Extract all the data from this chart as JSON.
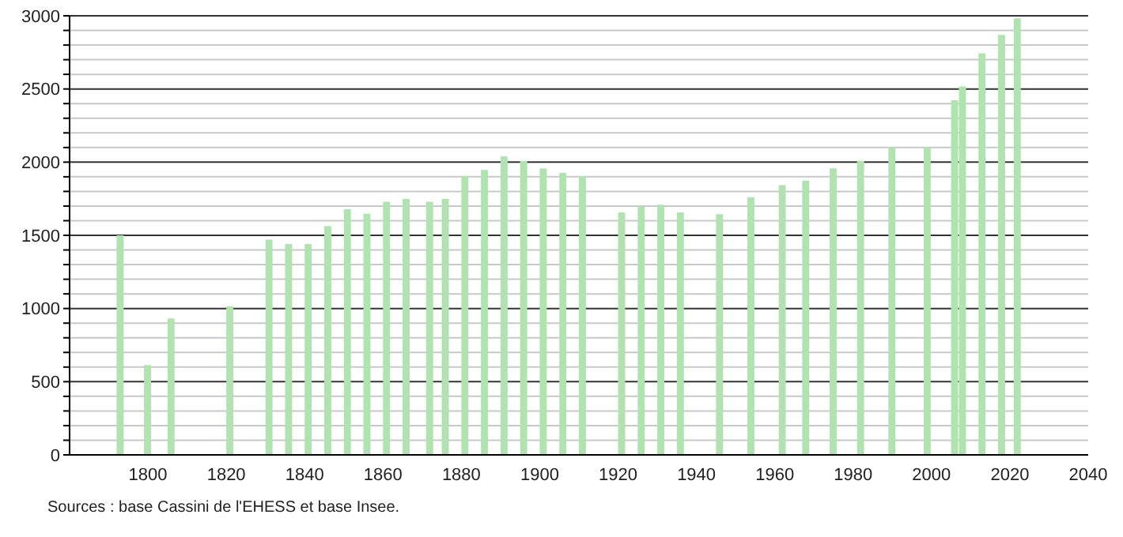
{
  "chart_data": {
    "type": "bar",
    "x": [
      1793,
      1800,
      1806,
      1821,
      1831,
      1836,
      1841,
      1846,
      1851,
      1856,
      1861,
      1866,
      1872,
      1876,
      1881,
      1886,
      1891,
      1896,
      1901,
      1906,
      1911,
      1921,
      1926,
      1931,
      1936,
      1946,
      1954,
      1962,
      1968,
      1975,
      1982,
      1990,
      1999,
      2006,
      2008,
      2013,
      2018,
      2022
    ],
    "values": [
      1500,
      614,
      932,
      1015,
      1470,
      1440,
      1440,
      1564,
      1678,
      1647,
      1729,
      1750,
      1729,
      1750,
      1905,
      1947,
      2040,
      2009,
      1957,
      1926,
      1905,
      1657,
      1695,
      1709,
      1657,
      1645,
      1760,
      1843,
      1874,
      1957,
      2009,
      2102,
      2102,
      2423,
      2517,
      2744,
      2869,
      2982
    ],
    "color": "#b0e3b0",
    "xlim": [
      1780,
      2040
    ],
    "xticks": [
      1800,
      1820,
      1840,
      1860,
      1880,
      1900,
      1920,
      1940,
      1960,
      1980,
      2000,
      2020,
      2040
    ],
    "ylim": [
      0,
      3000
    ],
    "yticks": [
      0,
      {
        "value": 100,
        "label": null
      },
      {
        "value": 200,
        "label": null
      },
      {
        "value": 300,
        "label": null
      },
      {
        "value": 400,
        "label": null
      },
      500,
      {
        "value": 600,
        "label": null
      },
      {
        "value": 700,
        "label": null
      },
      {
        "value": 800,
        "label": null
      },
      {
        "value": 900,
        "label": null
      },
      1000,
      {
        "value": 1100,
        "label": null
      },
      {
        "value": 1200,
        "label": null
      },
      {
        "value": 1300,
        "label": null
      },
      {
        "value": 1400,
        "label": null
      },
      1500,
      {
        "value": 1600,
        "label": null
      },
      {
        "value": 1700,
        "label": null
      },
      {
        "value": 1800,
        "label": null
      },
      {
        "value": 1900,
        "label": null
      },
      2000,
      {
        "value": 2100,
        "label": null
      },
      {
        "value": 2200,
        "label": null
      },
      {
        "value": 2300,
        "label": null
      },
      {
        "value": 2400,
        "label": null
      },
      2500,
      {
        "value": 2600,
        "label": null
      },
      {
        "value": 2700,
        "label": null
      },
      {
        "value": 2800,
        "label": null
      },
      {
        "value": 2900,
        "label": null
      },
      3000
    ],
    "grid": "y",
    "annotations": [
      "Sources : base Cassini de l'EHESS et base Insee."
    ]
  }
}
